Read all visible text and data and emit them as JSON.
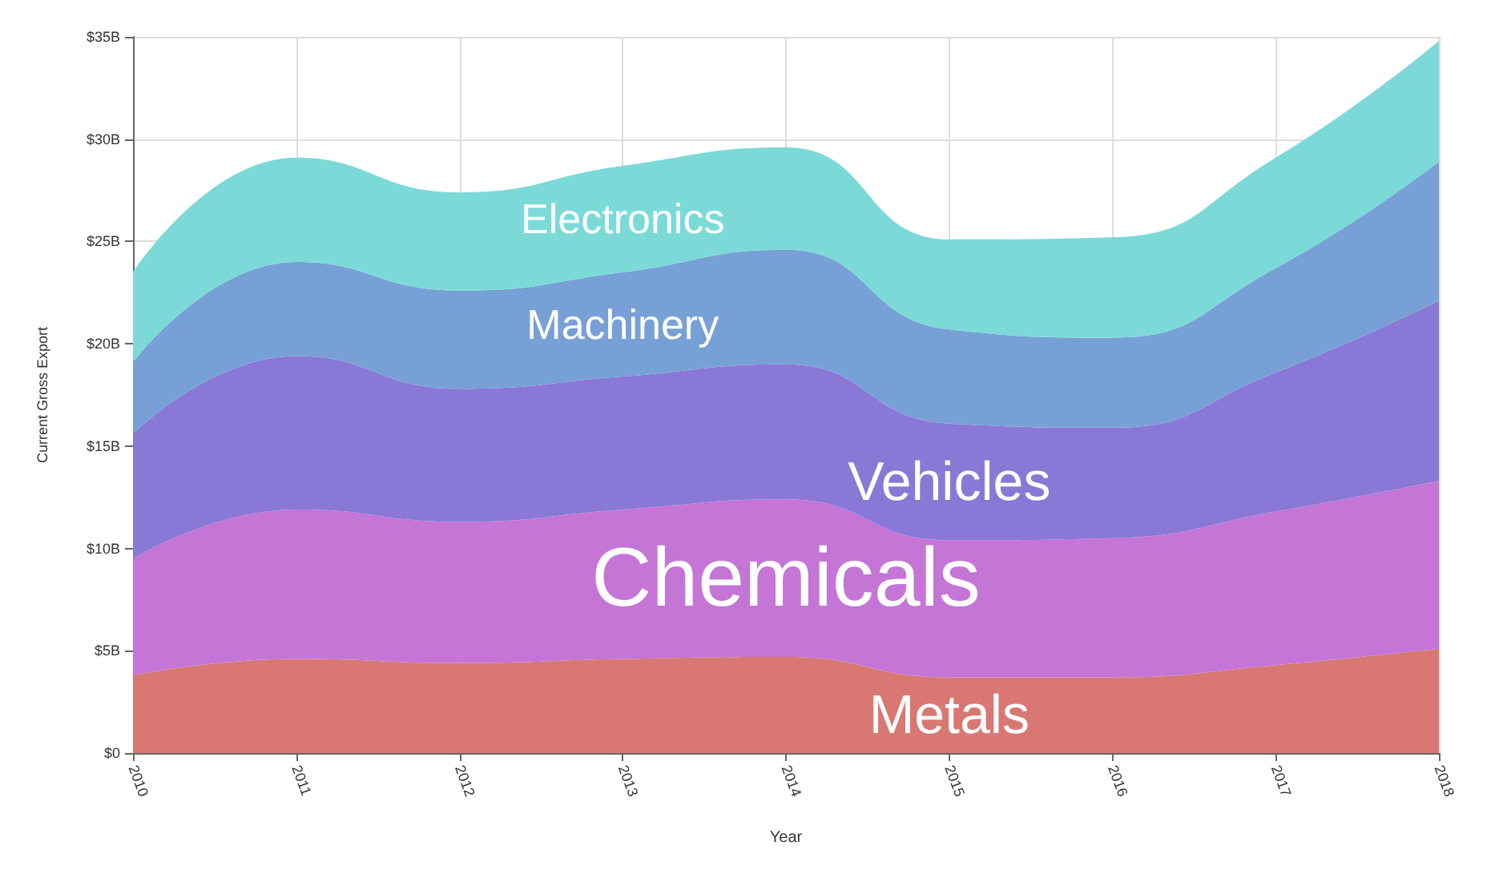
{
  "chart_data": {
    "type": "area",
    "stacked": true,
    "xlabel": "Year",
    "ylabel": "Current Gross Export",
    "categories": [
      "2010",
      "2011",
      "2012",
      "2013",
      "2014",
      "2015",
      "2016",
      "2017",
      "2018"
    ],
    "ylim": [
      0,
      35
    ],
    "yticks": [
      {
        "value": 0,
        "label": "$0"
      },
      {
        "value": 5,
        "label": "$5B"
      },
      {
        "value": 10,
        "label": "$10B"
      },
      {
        "value": 15,
        "label": "$15B"
      },
      {
        "value": 20,
        "label": "$20B"
      },
      {
        "value": 25,
        "label": "$25B"
      },
      {
        "value": 30,
        "label": "$30B"
      },
      {
        "value": 35,
        "label": "$35B"
      }
    ],
    "grid": true,
    "legend": false,
    "series": [
      {
        "name": "Metals",
        "color": "#d97873",
        "values": [
          3.8,
          4.6,
          4.4,
          4.6,
          4.7,
          3.7,
          3.7,
          4.3,
          5.1
        ]
      },
      {
        "name": "Chemicals",
        "color": "#c475d6",
        "values": [
          5.7,
          7.3,
          6.9,
          7.3,
          7.7,
          6.7,
          6.8,
          7.5,
          8.2
        ]
      },
      {
        "name": "Vehicles",
        "color": "#8a78d6",
        "values": [
          6.1,
          7.5,
          6.5,
          6.5,
          6.6,
          5.7,
          5.4,
          6.8,
          8.8
        ]
      },
      {
        "name": "Machinery",
        "color": "#77a0d6",
        "values": [
          3.5,
          4.6,
          4.8,
          5.1,
          5.6,
          4.6,
          4.4,
          5.1,
          6.8
        ]
      },
      {
        "name": "Electronics",
        "color": "#7bdad8",
        "values": [
          4.4,
          5.1,
          4.8,
          5.2,
          5.0,
          4.4,
          4.9,
          5.4,
          5.9
        ]
      }
    ]
  }
}
